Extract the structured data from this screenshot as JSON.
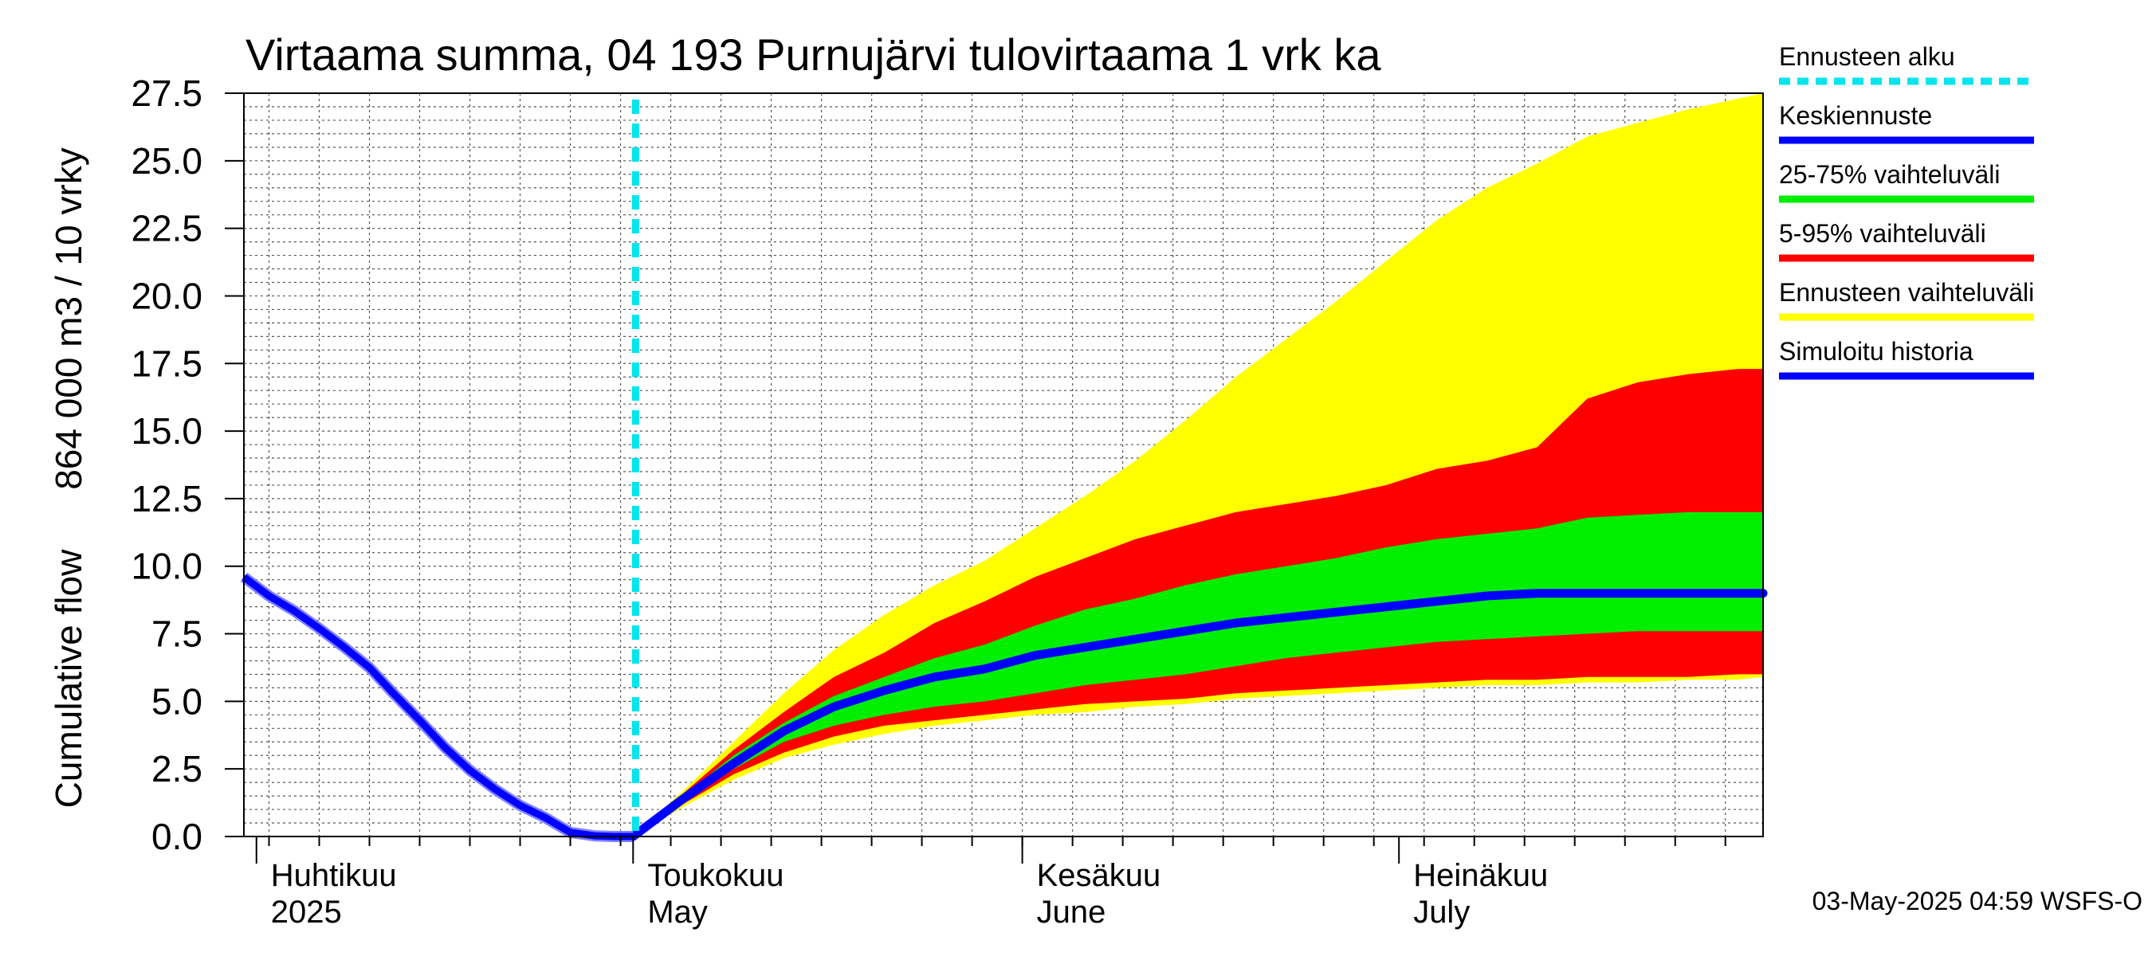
{
  "chart_data": {
    "type": "area",
    "title": "Virtaama summa, 04 193 Purnujärvi tulovirtaama 1 vrk ka",
    "ylabel_top": "864 000 m3 / 10 vrky",
    "ylabel_bottom": "Cumulative flow",
    "ylim": [
      0,
      27.5
    ],
    "yticks": [
      "0.0",
      "2.5",
      "5.0",
      "7.5",
      "10.0",
      "12.5",
      "15.0",
      "17.5",
      "20.0",
      "22.5",
      "25.0",
      "27.5"
    ],
    "ytick_values": [
      0,
      2.5,
      5,
      7.5,
      10,
      12.5,
      15,
      17.5,
      20,
      22.5,
      25,
      27.5
    ],
    "x_unit": "days since 2025-04-01",
    "xlim": [
      -1,
      120
    ],
    "grid": true,
    "months": [
      {
        "fi": "Huhtikuu",
        "en": "2025",
        "start_day": 0
      },
      {
        "fi": "Toukokuu",
        "en": "May",
        "start_day": 30
      },
      {
        "fi": "Kesäkuu",
        "en": "June",
        "start_day": 61
      },
      {
        "fi": "Heinäkuu",
        "en": "July",
        "start_day": 91
      }
    ],
    "forecast_start_day": 30.2,
    "history": {
      "x": [
        -1,
        1,
        3,
        5,
        7,
        9,
        11,
        13,
        15,
        17,
        19,
        21,
        23,
        25,
        27,
        28.5,
        30
      ],
      "y": [
        9.6,
        8.9,
        8.35,
        7.7,
        7.0,
        6.25,
        5.25,
        4.3,
        3.3,
        2.45,
        1.75,
        1.15,
        0.7,
        0.15,
        0.02,
        0.0,
        0.0
      ]
    },
    "forecast_x": [
      30,
      34,
      38,
      42,
      46,
      50,
      54,
      58,
      62,
      66,
      70,
      74,
      78,
      82,
      86,
      90,
      94,
      98,
      102,
      106,
      110,
      114,
      118,
      120
    ],
    "bands": {
      "ennuste_upper": [
        0.0,
        1.7,
        3.5,
        5.3,
        6.9,
        8.2,
        9.3,
        10.2,
        11.4,
        12.6,
        13.9,
        15.4,
        17.0,
        18.4,
        19.8,
        21.3,
        22.8,
        24.0,
        24.9,
        25.9,
        26.4,
        26.9,
        27.3,
        27.5
      ],
      "p95": [
        0.0,
        1.6,
        3.2,
        4.6,
        5.9,
        6.8,
        7.9,
        8.7,
        9.6,
        10.3,
        11.0,
        11.5,
        12.0,
        12.3,
        12.6,
        13.0,
        13.6,
        13.9,
        14.4,
        16.2,
        16.8,
        17.1,
        17.3,
        17.3
      ],
      "p75": [
        0.0,
        1.5,
        3.0,
        4.2,
        5.2,
        5.9,
        6.6,
        7.1,
        7.8,
        8.4,
        8.8,
        9.3,
        9.7,
        10.0,
        10.3,
        10.7,
        11.0,
        11.2,
        11.4,
        11.8,
        11.9,
        12.0,
        12.0,
        12.0
      ],
      "median": [
        0.0,
        1.4,
        2.7,
        3.9,
        4.8,
        5.4,
        5.9,
        6.2,
        6.7,
        7.0,
        7.3,
        7.6,
        7.9,
        8.1,
        8.3,
        8.5,
        8.7,
        8.9,
        9.0,
        9.0,
        9.0,
        9.0,
        9.0,
        9.0
      ],
      "p25": [
        0.0,
        1.3,
        2.5,
        3.5,
        4.1,
        4.5,
        4.8,
        5.0,
        5.3,
        5.6,
        5.8,
        6.0,
        6.3,
        6.6,
        6.8,
        7.0,
        7.2,
        7.3,
        7.4,
        7.5,
        7.6,
        7.6,
        7.6,
        7.6
      ],
      "p5": [
        0.0,
        1.2,
        2.3,
        3.1,
        3.7,
        4.1,
        4.3,
        4.5,
        4.7,
        4.9,
        5.0,
        5.1,
        5.3,
        5.4,
        5.5,
        5.6,
        5.7,
        5.8,
        5.8,
        5.9,
        5.9,
        5.9,
        6.0,
        6.0
      ],
      "ennuste_lower": [
        0.0,
        1.1,
        2.1,
        2.9,
        3.4,
        3.8,
        4.1,
        4.3,
        4.5,
        4.6,
        4.8,
        4.9,
        5.1,
        5.2,
        5.3,
        5.4,
        5.5,
        5.6,
        5.6,
        5.7,
        5.7,
        5.8,
        5.8,
        5.9
      ]
    },
    "legend_position": "right",
    "legend": [
      {
        "label": "Ennusteen alku",
        "color": "#00e5ee",
        "style": "dashed"
      },
      {
        "label": "Keskiennuste",
        "color": "#0000ff",
        "style": "solid"
      },
      {
        "label": "25-75% vaihteluväli",
        "color": "#00ee00",
        "style": "solid"
      },
      {
        "label": "5-95% vaihteluväli",
        "color": "#ff0000",
        "style": "solid"
      },
      {
        "label": "Ennusteen vaihteluväli",
        "color": "#ffff00",
        "style": "solid"
      },
      {
        "label": "Simuloitu historia",
        "color": "#0000ff",
        "style": "solid"
      }
    ],
    "colors": {
      "ennuste": "#ffff00",
      "p5_95": "#ff0000",
      "p25_75": "#00ee00",
      "median": "#0000ff",
      "history": "#0000ff",
      "history_edge": "#7f7fff",
      "forecast_start": "#00e5ee",
      "grid": "#555555",
      "axis": "#000000"
    },
    "footer": "03-May-2025 04:59 WSFS-O"
  }
}
